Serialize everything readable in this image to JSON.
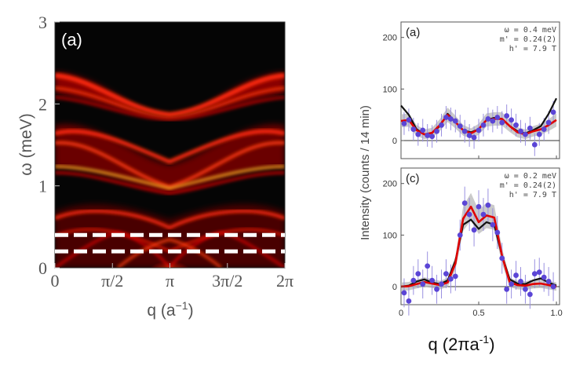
{
  "chart_data": [
    {
      "type": "heatmap",
      "panel_label": "(a)",
      "xlabel_main": "q (a",
      "xlabel_sup": "−1",
      "xlabel_tail": ")",
      "ylabel": "ω (meV)",
      "xticks": [
        "0",
        "π/2",
        "π",
        "3π/2",
        "2π"
      ],
      "yticks": [
        "0",
        "1",
        "2",
        "3"
      ],
      "xlim": [
        0,
        6.2832
      ],
      "ylim": [
        0,
        3
      ],
      "dashed_lines": [
        0.2,
        0.4
      ],
      "colors": {
        "background": "#050505",
        "low": "#7a0000",
        "mid": "#ff1a00",
        "high": "#ffe24a",
        "dash": "#ffffff"
      }
    },
    {
      "type": "scatter",
      "panel_label": "(a)",
      "annotation": [
        "ω = 0.4 meV",
        "m' = 0.24(2)",
        "h' = 7.9 T"
      ],
      "ylabel": "Intensity (counts / 14 min)",
      "xlim": [
        0,
        1.02
      ],
      "ylim": [
        -35,
        230
      ],
      "yticks": [
        "0",
        "100",
        "200"
      ],
      "xticks": [
        "0",
        "0.5",
        "1.0"
      ],
      "x": [
        0.02,
        0.05,
        0.08,
        0.11,
        0.14,
        0.17,
        0.2,
        0.23,
        0.26,
        0.29,
        0.32,
        0.35,
        0.38,
        0.41,
        0.44,
        0.47,
        0.5,
        0.53,
        0.56,
        0.59,
        0.62,
        0.65,
        0.68,
        0.71,
        0.74,
        0.77,
        0.8,
        0.83,
        0.86,
        0.89,
        0.92,
        0.95,
        0.98
      ],
      "y": [
        33,
        40,
        22,
        12,
        20,
        10,
        8,
        18,
        30,
        45,
        42,
        38,
        28,
        18,
        10,
        6,
        20,
        30,
        42,
        38,
        45,
        35,
        48,
        40,
        30,
        18,
        12,
        24,
        -8,
        12,
        22,
        35,
        55
      ],
      "err": [
        22,
        22,
        22,
        22,
        22,
        22,
        22,
        22,
        22,
        22,
        22,
        22,
        22,
        22,
        22,
        22,
        22,
        22,
        22,
        22,
        22,
        22,
        22,
        22,
        22,
        22,
        22,
        22,
        22,
        22,
        22,
        22,
        22
      ],
      "series": [
        {
          "name": "black",
          "color": "#111111",
          "x": [
            0,
            0.05,
            0.1,
            0.15,
            0.2,
            0.25,
            0.3,
            0.35,
            0.4,
            0.45,
            0.5,
            0.55,
            0.6,
            0.65,
            0.7,
            0.75,
            0.8,
            0.85,
            0.9,
            0.95,
            1.0
          ],
          "y": [
            68,
            50,
            22,
            12,
            15,
            28,
            52,
            36,
            20,
            16,
            22,
            40,
            44,
            42,
            28,
            18,
            14,
            20,
            28,
            52,
            82
          ]
        },
        {
          "name": "red",
          "color": "#e00000",
          "x": [
            0,
            0.05,
            0.1,
            0.15,
            0.2,
            0.25,
            0.3,
            0.35,
            0.4,
            0.45,
            0.5,
            0.55,
            0.6,
            0.65,
            0.7,
            0.75,
            0.8,
            0.85,
            0.9,
            0.95,
            1.0
          ],
          "y": [
            38,
            40,
            20,
            12,
            15,
            30,
            50,
            36,
            20,
            14,
            22,
            40,
            42,
            42,
            28,
            16,
            12,
            18,
            22,
            30,
            40
          ]
        }
      ],
      "band_color": "#b8b8b8",
      "marker_color": "#5b45d6"
    },
    {
      "type": "scatter",
      "panel_label": "(c)",
      "annotation": [
        "ω = 0.2 meV",
        "m' = 0.24(2)",
        "h' = 7.9 T"
      ],
      "xlabel": "q (2πa",
      "xlabel_sup": "-1",
      "xlabel_tail": ")",
      "xlim": [
        0,
        1.02
      ],
      "ylim": [
        -35,
        230
      ],
      "yticks": [
        "0",
        "100",
        "200"
      ],
      "xticks": [
        "0",
        "0.5",
        "1.0"
      ],
      "x": [
        0.02,
        0.05,
        0.08,
        0.11,
        0.14,
        0.17,
        0.2,
        0.23,
        0.26,
        0.29,
        0.32,
        0.35,
        0.38,
        0.41,
        0.44,
        0.47,
        0.5,
        0.53,
        0.56,
        0.59,
        0.62,
        0.65,
        0.68,
        0.71,
        0.74,
        0.77,
        0.8,
        0.83,
        0.86,
        0.89,
        0.92,
        0.95,
        0.98
      ],
      "y": [
        -12,
        -28,
        12,
        25,
        5,
        40,
        12,
        -5,
        5,
        25,
        15,
        20,
        100,
        162,
        140,
        110,
        155,
        140,
        158,
        120,
        105,
        55,
        -5,
        5,
        22,
        10,
        -5,
        -15,
        25,
        28,
        18,
        10,
        0
      ],
      "err": [
        28,
        28,
        28,
        28,
        28,
        28,
        28,
        28,
        28,
        28,
        28,
        28,
        30,
        32,
        32,
        32,
        32,
        32,
        32,
        32,
        32,
        30,
        28,
        28,
        28,
        28,
        28,
        28,
        28,
        28,
        28,
        28,
        28
      ],
      "series": [
        {
          "name": "black",
          "color": "#111111",
          "x": [
            0,
            0.05,
            0.1,
            0.15,
            0.2,
            0.25,
            0.3,
            0.35,
            0.4,
            0.45,
            0.5,
            0.55,
            0.6,
            0.65,
            0.7,
            0.75,
            0.8,
            0.85,
            0.9,
            0.95,
            1.0
          ],
          "y": [
            0,
            2,
            10,
            14,
            8,
            5,
            12,
            50,
            120,
            130,
            112,
            125,
            120,
            60,
            14,
            6,
            5,
            12,
            16,
            8,
            2
          ]
        },
        {
          "name": "red",
          "color": "#e00000",
          "x": [
            0,
            0.05,
            0.1,
            0.15,
            0.2,
            0.25,
            0.3,
            0.35,
            0.4,
            0.45,
            0.5,
            0.55,
            0.6,
            0.65,
            0.7,
            0.75,
            0.8,
            0.85,
            0.9,
            0.95,
            1.0
          ],
          "y": [
            0,
            1,
            5,
            9,
            6,
            3,
            8,
            45,
            132,
            155,
            125,
            138,
            134,
            60,
            8,
            3,
            2,
            5,
            6,
            3,
            0
          ]
        }
      ],
      "band_color": "#b8b8b8",
      "marker_color": "#5b45d6"
    }
  ]
}
